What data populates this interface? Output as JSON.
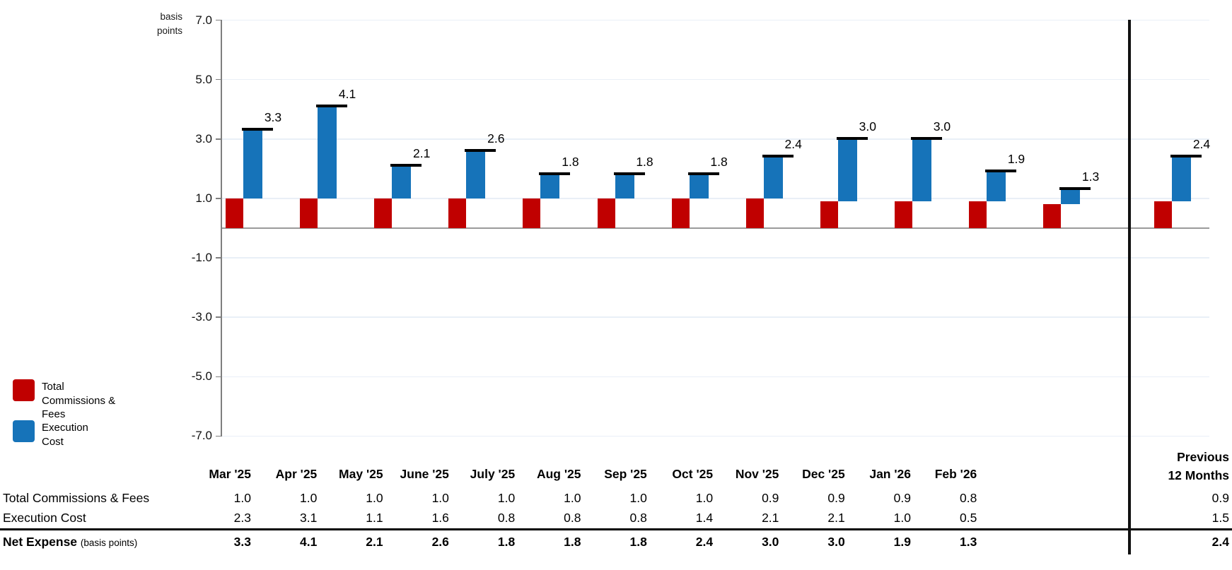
{
  "chart_data": {
    "type": "bar",
    "ylabel": "basis points",
    "ylim": [
      -7,
      7
    ],
    "y_ticks": [
      7,
      5,
      3,
      1,
      -1,
      -3,
      -5,
      -7
    ],
    "grid": true,
    "legend_position": "bottom-left",
    "categories": [
      "Mar '25",
      "Apr '25",
      "May '25",
      "June '25",
      "July '25",
      "Aug '25",
      "Sep '25",
      "Oct '25",
      "Nov '25",
      "Dec '25",
      "Jan '26",
      "Feb '26"
    ],
    "summary_category": "Previous 12 Months",
    "series": [
      {
        "name": "Total Commissions & Fees",
        "color": "#C00000",
        "values": [
          1.0,
          1.0,
          1.0,
          1.0,
          1.0,
          1.0,
          1.0,
          1.0,
          0.9,
          0.9,
          0.9,
          0.8
        ],
        "summary_value": 0.9
      },
      {
        "name": "Execution Cost",
        "color": "#1673B9",
        "values": [
          2.3,
          3.1,
          1.1,
          1.6,
          0.8,
          0.8,
          0.8,
          1.4,
          2.1,
          2.1,
          1.0,
          0.5
        ],
        "summary_value": 1.5
      }
    ],
    "totals": {
      "name": "Net Expense",
      "unit_note": "(basis points)",
      "marker_color": "#000000",
      "values": [
        3.3,
        4.1,
        2.1,
        2.6,
        1.8,
        1.8,
        1.8,
        2.4,
        3.0,
        3.0,
        1.9,
        1.3
      ],
      "summary_value": 2.4
    }
  },
  "legend": {
    "items": [
      {
        "label": "Total Commissions & Fees",
        "color": "#C00000"
      },
      {
        "label": "Execution Cost",
        "color": "#1673B9"
      }
    ]
  },
  "table": {
    "header_summary": "Previous 12 Months",
    "rows": [
      {
        "label": "Total Commissions & Fees"
      },
      {
        "label": "Execution Cost"
      },
      {
        "label": "Net Expense",
        "label_note": "(basis points)"
      }
    ]
  }
}
